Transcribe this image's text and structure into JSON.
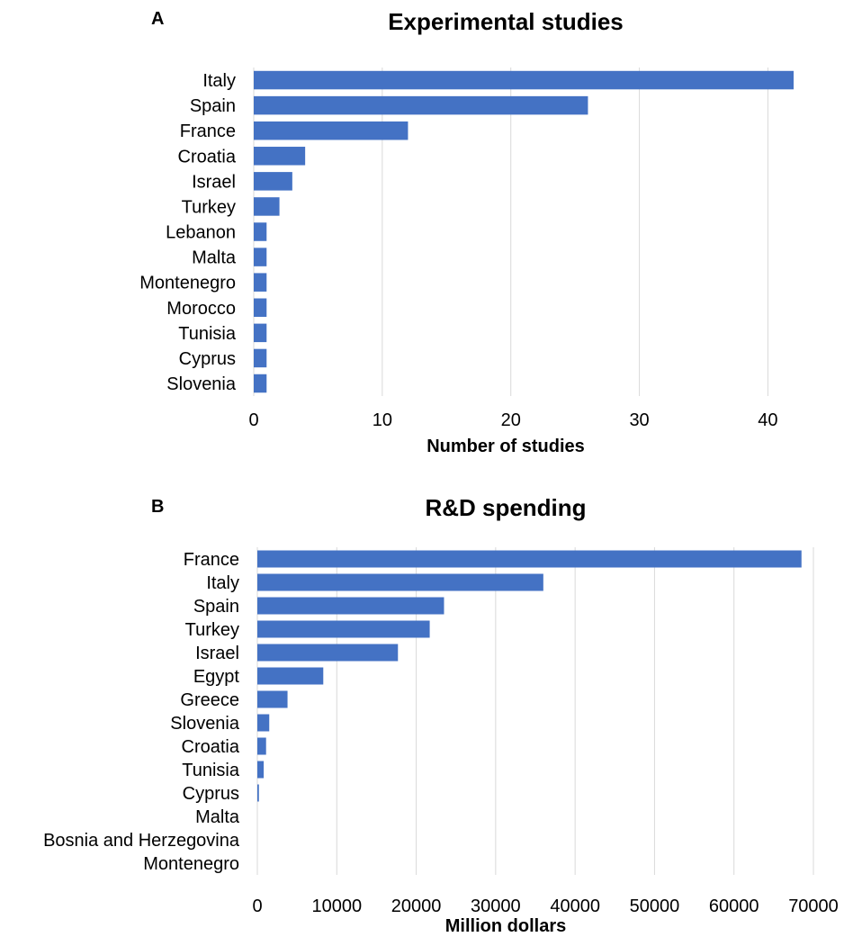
{
  "chart_data": [
    {
      "panel": "A",
      "type": "bar",
      "orientation": "horizontal",
      "title": "Experimental studies",
      "xlabel": "Number of studies",
      "ylabel": "",
      "categories": [
        "Italy",
        "Spain",
        "France",
        "Croatia",
        "Israel",
        "Turkey",
        "Lebanon",
        "Malta",
        "Montenegro",
        "Morocco",
        "Tunisia",
        "Cyprus",
        "Slovenia"
      ],
      "values": [
        42,
        26,
        12,
        4,
        3,
        2,
        1,
        1,
        1,
        1,
        1,
        1,
        1
      ],
      "xlim": [
        0,
        44
      ],
      "xticks": [
        0,
        10,
        20,
        30,
        40
      ],
      "grid": "vertical",
      "bar_color": "#4472c4"
    },
    {
      "panel": "B",
      "type": "bar",
      "orientation": "horizontal",
      "title": "R&D spending",
      "xlabel": "Million dollars",
      "ylabel": "",
      "categories": [
        "France",
        "Italy",
        "Spain",
        "Turkey",
        "Israel",
        "Egypt",
        "Greece",
        "Slovenia",
        "Croatia",
        "Tunisia",
        "Cyprus",
        "Malta",
        "Bosnia and Herzegovina",
        "Montenegro"
      ],
      "values": [
        68500,
        36000,
        23500,
        21700,
        17700,
        8300,
        3800,
        1500,
        1100,
        800,
        200,
        0,
        0,
        0
      ],
      "xlim": [
        0,
        70000
      ],
      "xticks": [
        0,
        10000,
        20000,
        30000,
        40000,
        50000,
        60000,
        70000
      ],
      "grid": "vertical",
      "bar_color": "#4472c4"
    }
  ]
}
